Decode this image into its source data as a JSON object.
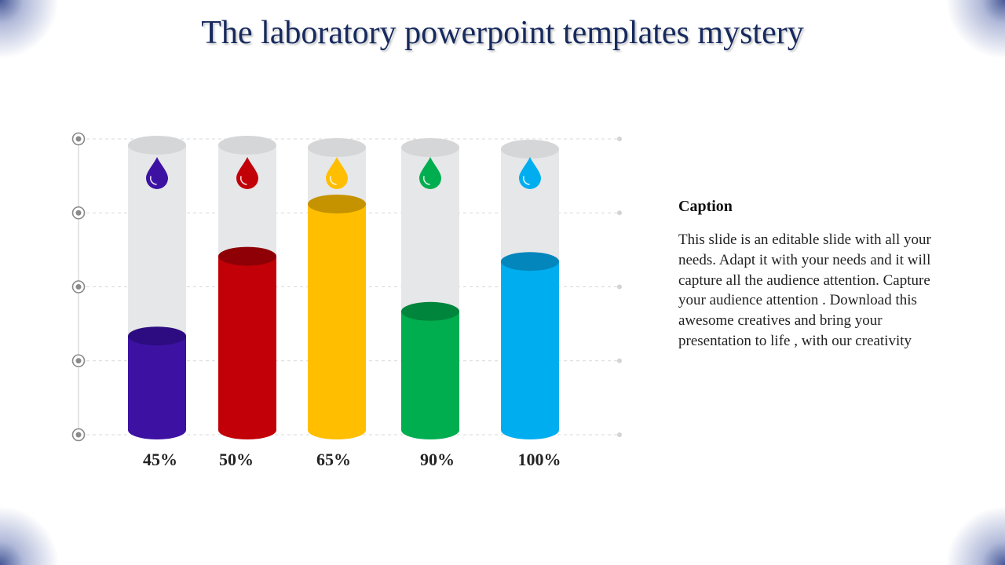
{
  "title": "The laboratory powerpoint templates mystery",
  "caption": {
    "heading": "Caption",
    "body": "This slide is an editable slide with all your needs. Adapt it with your needs and it will capture all the audience attention. Capture your audience attention . Download this awesome creatives and bring your presentation to life , with our creativity"
  },
  "chart_data": {
    "type": "bar",
    "categories": [
      "45%",
      "50%",
      "65%",
      "90%",
      "100%"
    ],
    "values": [
      0.33,
      0.61,
      0.8,
      0.42,
      0.6
    ],
    "value_scale": "fraction of tube height",
    "colors": {
      "body": [
        "#3d12a3",
        "#c10007",
        "#ffbf00",
        "#00ad4f",
        "#00aeef"
      ],
      "top": [
        "#2c0c80",
        "#8e0005",
        "#c69300",
        "#00853c",
        "#0286bc"
      ]
    },
    "tube_color": "#e6e7e9",
    "tube_cap_color": "#d5d6d8",
    "gridlines": 5,
    "axis_markers": 5,
    "drop_icons": [
      "drop-icon",
      "drop-icon",
      "drop-icon",
      "drop-icon",
      "drop-icon"
    ],
    "grid": true,
    "legend": "none"
  }
}
